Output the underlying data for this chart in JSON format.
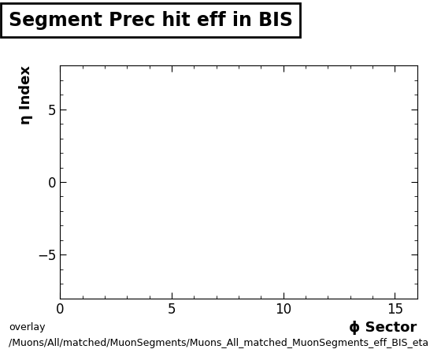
{
  "title": "Segment Prec hit eff in BIS",
  "xlabel": "ϕ Sector",
  "ylabel": "η Index",
  "xlim": [
    0,
    16
  ],
  "ylim": [
    -8,
    8
  ],
  "xticks": [
    0,
    5,
    10,
    15
  ],
  "yticks": [
    -5,
    0,
    5
  ],
  "background_color": "#ffffff",
  "plot_bg_color": "#ffffff",
  "footer_line1": "overlay",
  "footer_line2": "/Muons/All/matched/MuonSegments/Muons_All_matched_MuonSegments_eff_BIS_eta",
  "title_fontsize": 17,
  "axis_label_fontsize": 13,
  "tick_fontsize": 12,
  "footer_fontsize": 9
}
